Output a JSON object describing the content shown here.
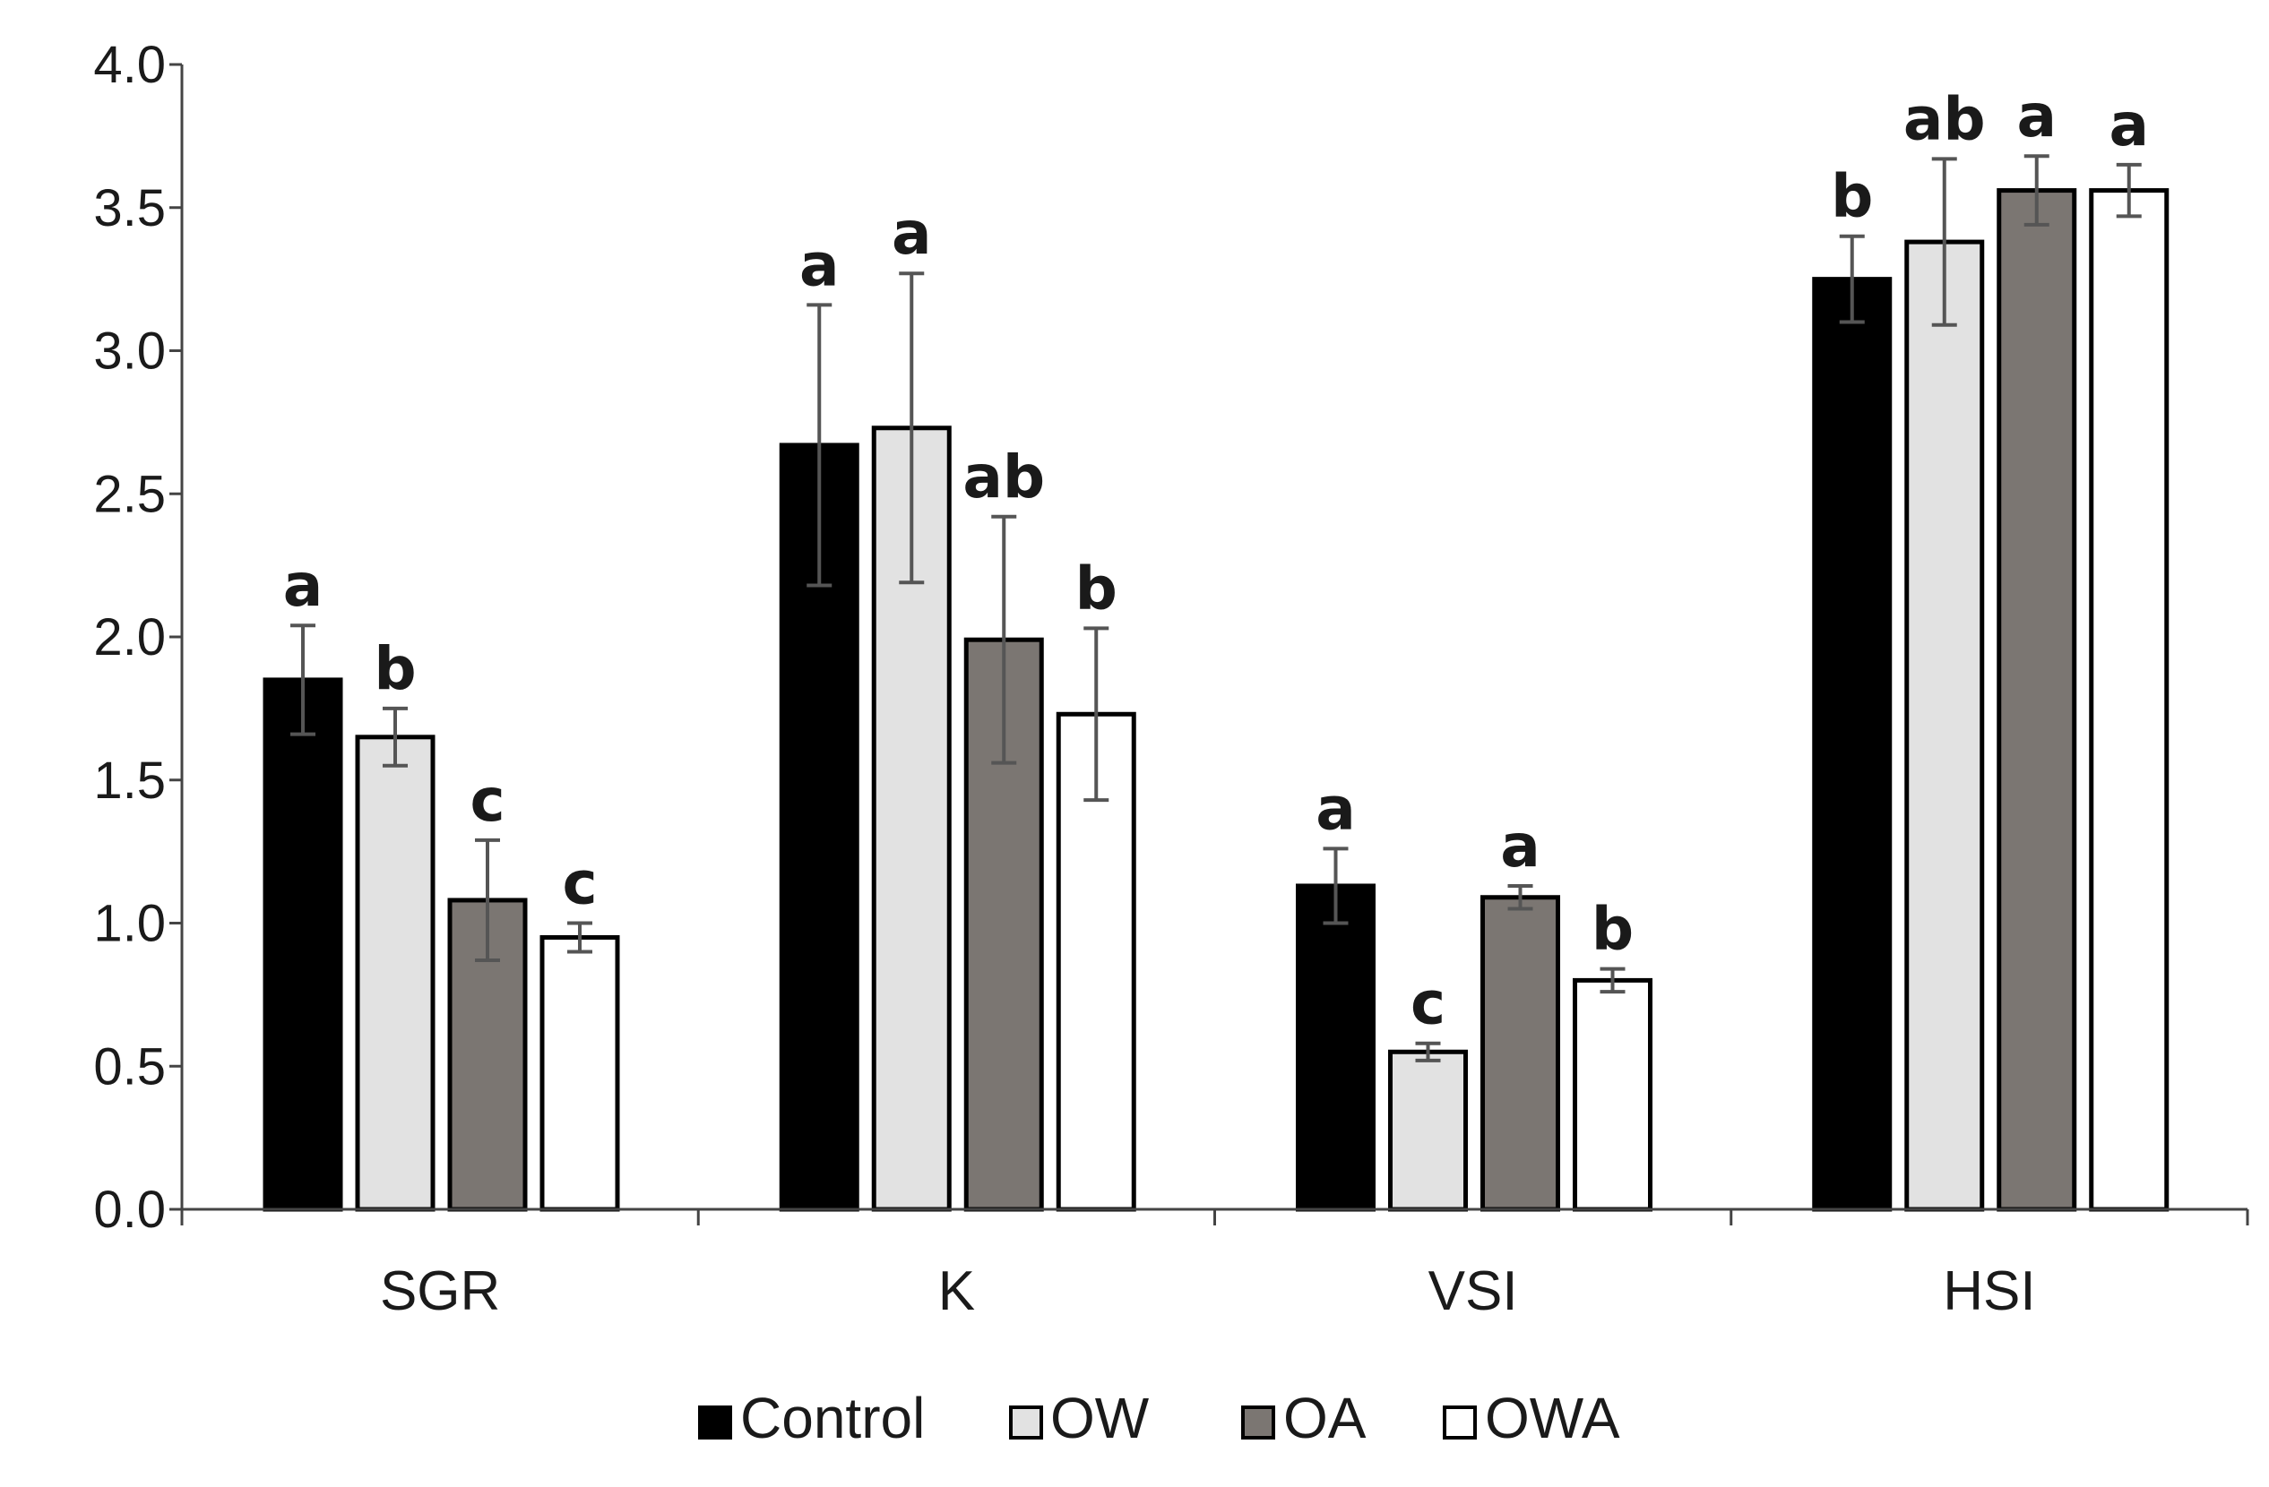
{
  "chart_data": {
    "type": "bar",
    "title": "",
    "xlabel": "",
    "ylabel": "",
    "ylim": [
      0,
      4.0
    ],
    "yticks": [
      "0.0",
      "0.5",
      "1.0",
      "1.5",
      "2.0",
      "2.5",
      "3.0",
      "3.5",
      "4.0"
    ],
    "categories": [
      "SGR",
      "K",
      "VSI",
      "HSI"
    ],
    "legend_position": "bottom",
    "series": [
      {
        "name": "Control",
        "color": "#000000",
        "values": [
          1.85,
          2.67,
          1.13,
          3.25
        ],
        "errors": [
          0.19,
          0.49,
          0.13,
          0.15
        ],
        "letters": [
          "a",
          "a",
          "a",
          "b"
        ]
      },
      {
        "name": "OW",
        "color": "#e2e2e2",
        "values": [
          1.65,
          2.73,
          0.55,
          3.38
        ],
        "errors": [
          0.1,
          0.54,
          0.03,
          0.29
        ],
        "letters": [
          "b",
          "a",
          "c",
          "ab"
        ]
      },
      {
        "name": "OA",
        "color": "#7b7672",
        "values": [
          1.08,
          1.99,
          1.09,
          3.56
        ],
        "errors": [
          0.21,
          0.43,
          0.04,
          0.12
        ],
        "letters": [
          "c",
          "ab",
          "a",
          "a"
        ]
      },
      {
        "name": "OWA",
        "color": "#ffffff",
        "values": [
          0.95,
          1.73,
          0.8,
          3.56
        ],
        "errors": [
          0.05,
          0.3,
          0.04,
          0.09
        ],
        "letters": [
          "c",
          "b",
          "b",
          "a"
        ]
      }
    ]
  }
}
